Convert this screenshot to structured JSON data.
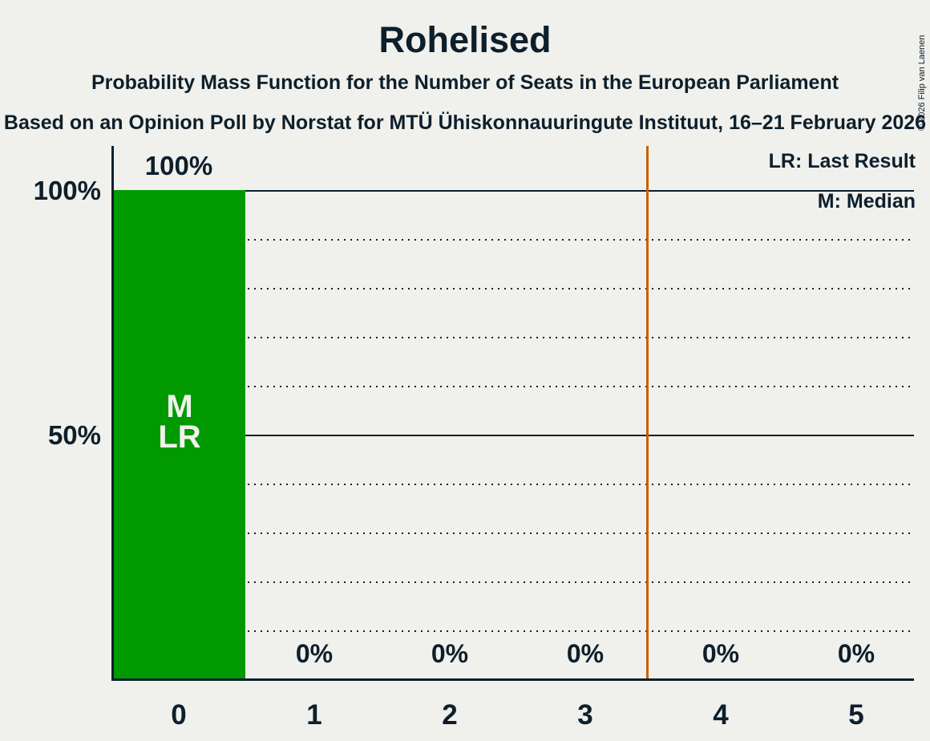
{
  "header": {
    "title": "Rohelised",
    "subtitle": "Probability Mass Function for the Number of Seats in the European Parliament",
    "source_line": "Based on an Opinion Poll by Norstat for MTÜ Ühiskonnauuringute Instituut, 16–21 February 2026"
  },
  "legend": {
    "last_result": "LR: Last Result",
    "median": "M: Median"
  },
  "y_axis": {
    "tick_100": "100%",
    "tick_50": "50%"
  },
  "copyright": "© 2026 Filip van Laenen",
  "chart_data": {
    "type": "bar",
    "title": "Rohelised",
    "categories": [
      "0",
      "1",
      "2",
      "3",
      "4",
      "5"
    ],
    "values": [
      100,
      0,
      0,
      0,
      0,
      0
    ],
    "value_labels": [
      "100%",
      "0%",
      "0%",
      "0%",
      "0%",
      "0%"
    ],
    "ylim": [
      0,
      100
    ],
    "y_ticks_labeled": [
      "100%",
      "50%"
    ],
    "dotted_gridlines_pct": [
      90,
      80,
      70,
      60,
      40,
      30,
      20,
      10
    ],
    "solid_gridlines_pct": [
      100,
      50
    ],
    "bar_color": "#009a00",
    "bar_text_color": "#f1f1ee",
    "background_color": "#f0f0ed",
    "text_color": "#0d1f2b",
    "majority_line": {
      "x": 3.5,
      "color": "#c85f06"
    },
    "annotations": {
      "median_label": "M",
      "last_result_label": "LR",
      "median_seat": 0,
      "last_result_seat": 0
    },
    "legend_position": "top-right"
  }
}
